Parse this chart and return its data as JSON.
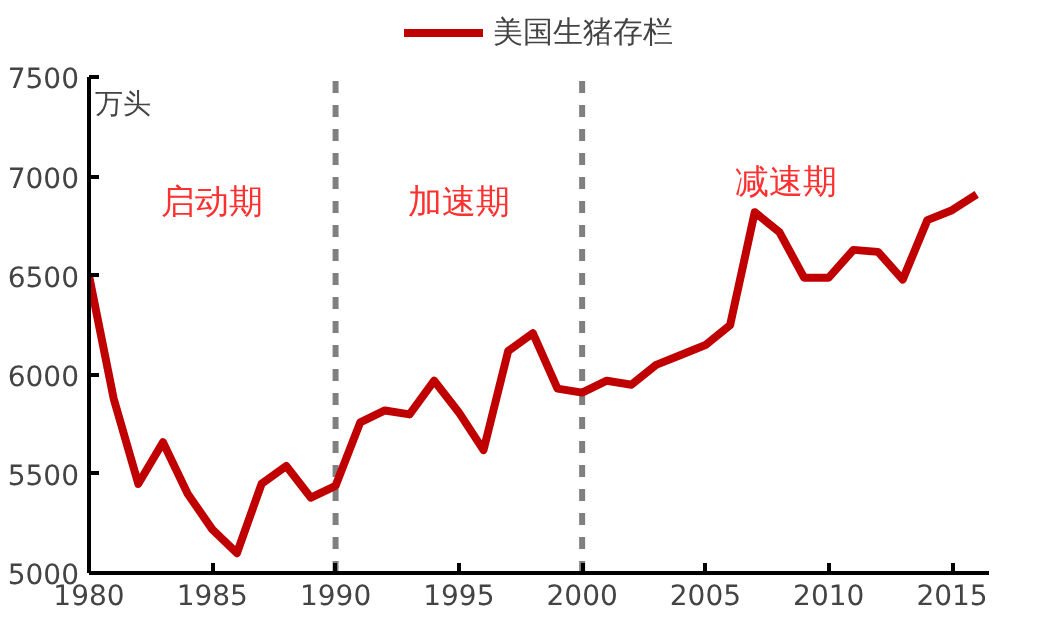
{
  "chart_data": {
    "type": "line",
    "ylabel": "万头",
    "x": [
      1980,
      1981,
      1982,
      1983,
      1984,
      1985,
      1986,
      1987,
      1988,
      1989,
      1990,
      1991,
      1992,
      1993,
      1994,
      1995,
      1996,
      1997,
      1998,
      1999,
      2000,
      2001,
      2002,
      2003,
      2004,
      2005,
      2006,
      2007,
      2008,
      2009,
      2010,
      2011,
      2012,
      2013,
      2014,
      2015,
      2016
    ],
    "series": [
      {
        "name": "美国生猪存栏",
        "color": "#c00000",
        "values": [
          6500,
          5880,
          5450,
          5660,
          5400,
          5220,
          5100,
          5450,
          5540,
          5380,
          5440,
          5760,
          5820,
          5800,
          5970,
          5810,
          5620,
          6120,
          6210,
          5930,
          5910,
          5970,
          5950,
          6050,
          6100,
          6150,
          6250,
          6820,
          6720,
          6490,
          6490,
          6630,
          6620,
          6480,
          6780,
          6830,
          6910
        ]
      }
    ],
    "xlim": [
      1980,
      2016.5
    ],
    "xticks": [
      1980,
      1985,
      1990,
      1995,
      2000,
      2005,
      2010,
      2015
    ],
    "ylim": [
      5000,
      7500
    ],
    "yticks": [
      5000,
      5500,
      6000,
      6500,
      7000,
      7500
    ],
    "ref_lines": [
      {
        "axis": "x",
        "value": 1990,
        "color": "#808080",
        "line_style": "dashed"
      },
      {
        "axis": "x",
        "value": 2000,
        "color": "#808080",
        "line_style": "dashed"
      }
    ],
    "annotations": [
      "启动期",
      "加速期",
      "减速期"
    ],
    "grid": false,
    "legend": "top",
    "marker": "none",
    "line_style": "solid"
  }
}
